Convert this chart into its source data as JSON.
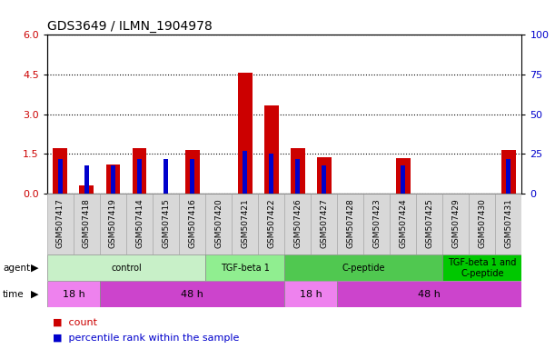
{
  "title": "GDS3649 / ILMN_1904978",
  "samples": [
    "GSM507417",
    "GSM507418",
    "GSM507419",
    "GSM507414",
    "GSM507415",
    "GSM507416",
    "GSM507420",
    "GSM507421",
    "GSM507422",
    "GSM507426",
    "GSM507427",
    "GSM507428",
    "GSM507423",
    "GSM507424",
    "GSM507425",
    "GSM507429",
    "GSM507430",
    "GSM507431"
  ],
  "count_values": [
    1.72,
    0.32,
    1.1,
    1.72,
    0.0,
    1.65,
    0.0,
    4.58,
    3.35,
    1.72,
    1.38,
    0.0,
    0.0,
    1.35,
    0.0,
    0.0,
    0.0,
    1.65
  ],
  "percentile_values": [
    1.32,
    1.08,
    1.08,
    1.32,
    1.32,
    1.32,
    0.0,
    1.62,
    1.5,
    1.32,
    1.08,
    0.0,
    0.0,
    1.08,
    0.0,
    0.0,
    0.0,
    1.32
  ],
  "bar_width": 0.55,
  "pct_bar_width": 0.18,
  "ylim_left": [
    0,
    6
  ],
  "ylim_right": [
    0,
    100
  ],
  "yticks_left": [
    0,
    1.5,
    3.0,
    4.5,
    6
  ],
  "yticks_right": [
    0,
    25,
    50,
    75,
    100
  ],
  "agent_groups": [
    {
      "label": "control",
      "start": 0,
      "end": 6,
      "color": "#c8f0c8"
    },
    {
      "label": "TGF-beta 1",
      "start": 6,
      "end": 9,
      "color": "#90ee90"
    },
    {
      "label": "C-peptide",
      "start": 9,
      "end": 15,
      "color": "#50c850"
    },
    {
      "label": "TGF-beta 1 and\nC-peptide",
      "start": 15,
      "end": 18,
      "color": "#00c800"
    }
  ],
  "time_groups": [
    {
      "label": "18 h",
      "start": 0,
      "end": 2,
      "color": "#ee82ee"
    },
    {
      "label": "48 h",
      "start": 2,
      "end": 9,
      "color": "#cc44cc"
    },
    {
      "label": "18 h",
      "start": 9,
      "end": 11,
      "color": "#ee82ee"
    },
    {
      "label": "48 h",
      "start": 11,
      "end": 18,
      "color": "#cc44cc"
    }
  ],
  "count_color": "#cc0000",
  "percentile_color": "#0000cc",
  "grid_color": "#000000",
  "bg_color": "#ffffff",
  "tick_label_color_left": "#cc0000",
  "tick_label_color_right": "#0000cc",
  "xlabel_bg": "#d8d8d8",
  "xlabel_border": "#aaaaaa"
}
